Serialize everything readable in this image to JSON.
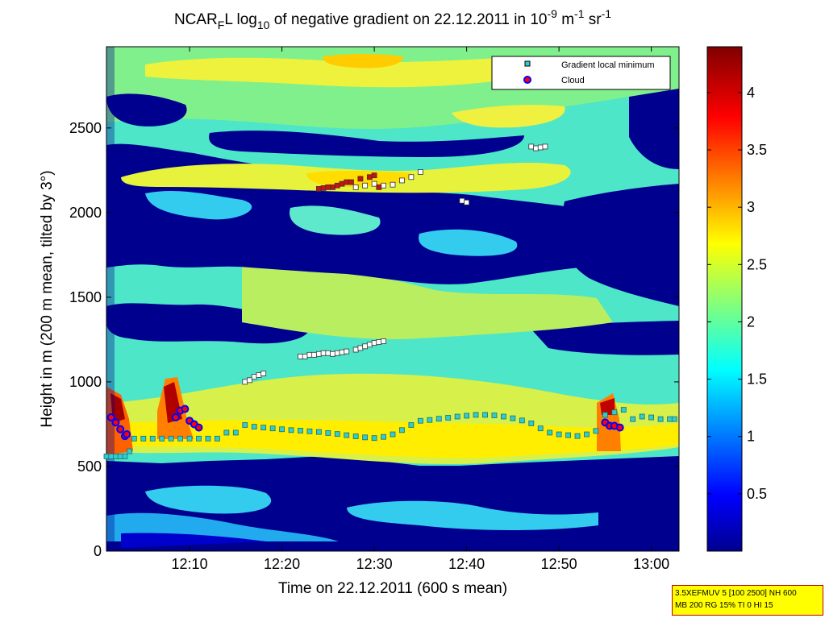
{
  "chart_data": {
    "type": "heatmap",
    "title": {
      "parts": [
        "NCAR",
        "F",
        "L log",
        "10",
        " of negative gradient on 22.12.2011 in 10",
        "-9",
        " m",
        "-1",
        " sr",
        "-1"
      ]
    },
    "xlabel": "Time on 22.12.2011 (600 s mean)",
    "ylabel": "Height in m (200 m mean, tilted by 3°)",
    "xlim": [
      "12:01:00",
      "13:03:00"
    ],
    "ylim": [
      0,
      2980
    ],
    "x_ticks": [
      "12:10",
      "12:20",
      "12:30",
      "12:40",
      "12:50",
      "13:00"
    ],
    "x_tick_minutes": [
      10,
      20,
      30,
      40,
      50,
      60
    ],
    "y_ticks": [
      0,
      500,
      1000,
      1500,
      2000,
      2500
    ],
    "colorbar": {
      "range": [
        0,
        4.4
      ],
      "ticks": [
        0.5,
        1,
        1.5,
        2,
        2.5,
        3,
        3.5,
        4
      ],
      "colormap": "jet"
    },
    "legend": {
      "position": "top-right",
      "entries": [
        "Gradient local minimum",
        "Cloud"
      ]
    },
    "series": [
      {
        "name": "Gradient local minimum",
        "color": "#33cccc",
        "points": [
          [
            1.0,
            560
          ],
          [
            1.5,
            560
          ],
          [
            2.0,
            560
          ],
          [
            2.5,
            560
          ],
          [
            3.0,
            560
          ],
          [
            3.5,
            590
          ],
          [
            4.0,
            665
          ],
          [
            5.0,
            665
          ],
          [
            6.0,
            665
          ],
          [
            7.0,
            665
          ],
          [
            8.0,
            665
          ],
          [
            9.0,
            665
          ],
          [
            10.0,
            665
          ],
          [
            11.0,
            665
          ],
          [
            12.0,
            665
          ],
          [
            13.0,
            665
          ],
          [
            14.0,
            700
          ],
          [
            15.0,
            700
          ],
          [
            16.0,
            745
          ],
          [
            17.0,
            735
          ],
          [
            18.0,
            730
          ],
          [
            19.0,
            725
          ],
          [
            20.0,
            720
          ],
          [
            21.0,
            715
          ],
          [
            22.0,
            712
          ],
          [
            23.0,
            708
          ],
          [
            24.0,
            704
          ],
          [
            25.0,
            698
          ],
          [
            26.0,
            692
          ],
          [
            27.0,
            685
          ],
          [
            28.0,
            678
          ],
          [
            29.0,
            672
          ],
          [
            30.0,
            668
          ],
          [
            31.0,
            675
          ],
          [
            32.0,
            690
          ],
          [
            33.0,
            715
          ],
          [
            34.0,
            745
          ],
          [
            35.0,
            770
          ],
          [
            36.0,
            775
          ],
          [
            37.0,
            782
          ],
          [
            38.0,
            788
          ],
          [
            39.0,
            795
          ],
          [
            40.0,
            800
          ],
          [
            41.0,
            805
          ],
          [
            42.0,
            805
          ],
          [
            43.0,
            802
          ],
          [
            44.0,
            795
          ],
          [
            45.0,
            785
          ],
          [
            46.0,
            772
          ],
          [
            47.0,
            755
          ],
          [
            48.0,
            725
          ],
          [
            49.0,
            700
          ],
          [
            50.0,
            690
          ],
          [
            51.0,
            685
          ],
          [
            52.0,
            680
          ],
          [
            53.0,
            690
          ],
          [
            54.0,
            710
          ],
          [
            55.0,
            805
          ],
          [
            56.0,
            820
          ],
          [
            57.0,
            835
          ],
          [
            58.0,
            780
          ],
          [
            59.0,
            795
          ],
          [
            60.0,
            790
          ],
          [
            61.0,
            780
          ],
          [
            62.0,
            780
          ],
          [
            62.5,
            780
          ]
        ]
      },
      {
        "name": "Cloud",
        "color": "#ff0000",
        "edge": "#0000ff",
        "points": [
          [
            1.5,
            790
          ],
          [
            2.0,
            760
          ],
          [
            2.5,
            720
          ],
          [
            3.0,
            680
          ],
          [
            3.2,
            690
          ],
          [
            8.5,
            790
          ],
          [
            9.0,
            830
          ],
          [
            9.5,
            840
          ],
          [
            10.0,
            770
          ],
          [
            10.5,
            750
          ],
          [
            11.0,
            730
          ],
          [
            55.0,
            760
          ],
          [
            55.5,
            740
          ],
          [
            56.0,
            740
          ],
          [
            56.6,
            730
          ]
        ]
      }
    ],
    "markers": [
      {
        "fill": "#ffffff",
        "points": [
          [
            16.0,
            1000
          ],
          [
            16.5,
            1010
          ],
          [
            17.0,
            1030
          ],
          [
            17.5,
            1040
          ],
          [
            18.0,
            1050
          ],
          [
            22.0,
            1150
          ],
          [
            22.5,
            1150
          ],
          [
            23.0,
            1160
          ],
          [
            23.5,
            1160
          ],
          [
            24.0,
            1165
          ],
          [
            24.5,
            1170
          ],
          [
            25.0,
            1170
          ],
          [
            25.5,
            1165
          ],
          [
            26.0,
            1170
          ],
          [
            26.5,
            1175
          ],
          [
            27.0,
            1180
          ],
          [
            28.0,
            1190
          ],
          [
            28.5,
            1200
          ],
          [
            29.0,
            1210
          ],
          [
            29.5,
            1220
          ],
          [
            30.0,
            1230
          ],
          [
            30.5,
            1235
          ],
          [
            31.0,
            1240
          ],
          [
            28.0,
            2150
          ],
          [
            29.0,
            2160
          ],
          [
            30.0,
            2170
          ],
          [
            31.0,
            2160
          ],
          [
            32.0,
            2165
          ],
          [
            33.0,
            2190
          ],
          [
            34.0,
            2210
          ],
          [
            35.0,
            2240
          ],
          [
            39.5,
            2070
          ],
          [
            40.0,
            2060
          ],
          [
            47.0,
            2390
          ],
          [
            47.5,
            2380
          ],
          [
            48.0,
            2385
          ],
          [
            48.5,
            2390
          ]
        ]
      },
      {
        "fill": "#cc1111",
        "points": [
          [
            24.0,
            2140
          ],
          [
            24.5,
            2145
          ],
          [
            25.0,
            2150
          ],
          [
            25.5,
            2150
          ],
          [
            26.0,
            2160
          ],
          [
            26.5,
            2170
          ],
          [
            27.0,
            2180
          ],
          [
            27.5,
            2180
          ],
          [
            28.5,
            2200
          ],
          [
            29.5,
            2210
          ],
          [
            30.0,
            2220
          ],
          [
            30.5,
            2150
          ]
        ]
      }
    ]
  },
  "infobox": {
    "line1": "3.5XEFMUV 5 [100 2500] NH 600",
    "line2": "MB 200 RG 15% TI 0 HI 15"
  }
}
